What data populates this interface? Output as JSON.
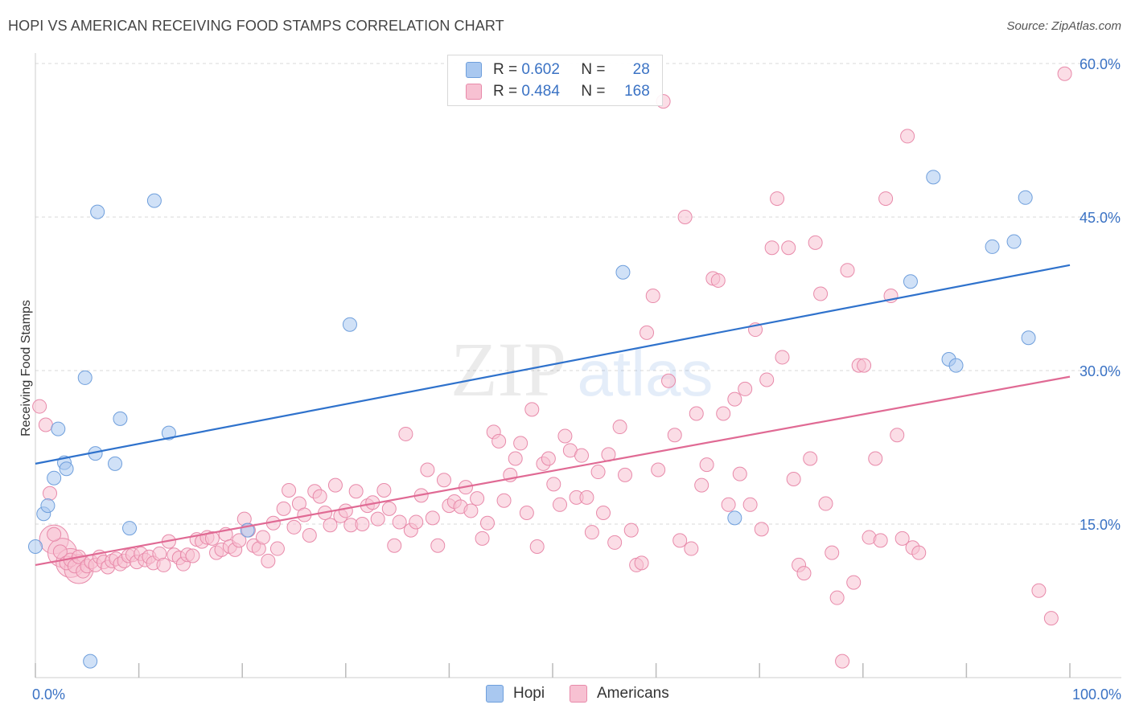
{
  "title": "HOPI VS AMERICAN RECEIVING FOOD STAMPS CORRELATION CHART",
  "source": "Source: ZipAtlas.com",
  "watermark": {
    "zip": "ZIP",
    "atlas": "atlas"
  },
  "legend": {
    "r_label": "R =",
    "n_label": "N =",
    "rows": [
      {
        "r": "0.602",
        "n": "28",
        "color": "#a9c8f0",
        "border": "#6f9fdc"
      },
      {
        "r": "0.484",
        "n": "168",
        "color": "#f7c1d2",
        "border": "#e88aaa"
      }
    ]
  },
  "bottom_legend": [
    {
      "label": "Hopi",
      "color": "#a9c8f0",
      "border": "#6f9fdc"
    },
    {
      "label": "Americans",
      "color": "#f7c1d2",
      "border": "#e88aaa"
    }
  ],
  "chart_data": {
    "type": "scatter",
    "ylabel": "Receiving Food Stamps",
    "xlim": [
      0,
      100
    ],
    "ylim": [
      0,
      60
    ],
    "x_tick_labels": [
      {
        "value": 0,
        "label": "0.0%"
      },
      {
        "value": 100,
        "label": "100.0%"
      }
    ],
    "y_tick_labels": [
      {
        "value": 15,
        "label": "15.0%"
      },
      {
        "value": 30,
        "label": "30.0%"
      },
      {
        "value": 45,
        "label": "45.0%"
      },
      {
        "value": 60,
        "label": "60.0%"
      }
    ],
    "grid": true,
    "series": [
      {
        "name": "Hopi",
        "color": "#a9c8f0",
        "stroke": "#6f9fdc",
        "line_color": "#2f72cc",
        "trend": {
          "x": [
            0,
            100
          ],
          "y": [
            20.9,
            40.3
          ]
        },
        "points": [
          [
            0,
            12.8
          ],
          [
            0.8,
            16.0
          ],
          [
            1.2,
            16.8
          ],
          [
            1.8,
            19.5
          ],
          [
            2.2,
            24.3
          ],
          [
            2.8,
            21.0
          ],
          [
            3.0,
            20.4
          ],
          [
            4.8,
            29.3
          ],
          [
            5.8,
            21.9
          ],
          [
            6.0,
            45.5
          ],
          [
            7.7,
            20.9
          ],
          [
            8.2,
            25.3
          ],
          [
            9.1,
            14.6
          ],
          [
            11.5,
            46.6
          ],
          [
            12.9,
            23.9
          ],
          [
            20.5,
            14.4
          ],
          [
            30.4,
            34.5
          ],
          [
            5.3,
            1.6
          ],
          [
            56.8,
            39.6
          ],
          [
            67.6,
            15.6
          ],
          [
            84.6,
            38.7
          ],
          [
            86.8,
            48.9
          ],
          [
            88.3,
            31.1
          ],
          [
            89.0,
            30.5
          ],
          [
            92.5,
            42.1
          ],
          [
            94.6,
            42.6
          ],
          [
            95.7,
            46.9
          ],
          [
            96.0,
            33.2
          ]
        ]
      },
      {
        "name": "Americans",
        "color": "#f7c1d2",
        "stroke": "#e88aaa",
        "line_color": "#e06a94",
        "trend": {
          "x": [
            0,
            100
          ],
          "y": [
            11.0,
            29.4
          ]
        },
        "points": [
          [
            0.4,
            26.5
          ],
          [
            1.0,
            24.7
          ],
          [
            1.4,
            18.0
          ],
          [
            1.8,
            14.0
          ],
          [
            2.4,
            12.3
          ],
          [
            3.0,
            11.2
          ],
          [
            3.4,
            11.5
          ],
          [
            3.8,
            10.9
          ],
          [
            4.2,
            11.8
          ],
          [
            4.6,
            10.4
          ],
          [
            5.0,
            10.9
          ],
          [
            5.4,
            11.3
          ],
          [
            5.8,
            11.0
          ],
          [
            6.2,
            11.8
          ],
          [
            6.6,
            11.3
          ],
          [
            7.0,
            10.8
          ],
          [
            7.4,
            11.4
          ],
          [
            7.8,
            11.6
          ],
          [
            8.2,
            11.1
          ],
          [
            8.6,
            11.4
          ],
          [
            9.0,
            11.9
          ],
          [
            9.4,
            12.0
          ],
          [
            9.8,
            11.3
          ],
          [
            10.2,
            12.1
          ],
          [
            10.6,
            11.5
          ],
          [
            11.0,
            11.8
          ],
          [
            11.4,
            11.2
          ],
          [
            12.0,
            12.1
          ],
          [
            12.4,
            11.0
          ],
          [
            12.9,
            13.3
          ],
          [
            13.4,
            12.0
          ],
          [
            13.9,
            11.7
          ],
          [
            14.3,
            11.1
          ],
          [
            14.7,
            12.0
          ],
          [
            15.2,
            11.9
          ],
          [
            15.6,
            13.5
          ],
          [
            16.1,
            13.3
          ],
          [
            16.6,
            13.7
          ],
          [
            17.1,
            13.6
          ],
          [
            17.5,
            12.2
          ],
          [
            18.0,
            12.5
          ],
          [
            18.4,
            14.0
          ],
          [
            18.8,
            12.8
          ],
          [
            19.3,
            12.5
          ],
          [
            19.7,
            13.4
          ],
          [
            20.2,
            15.5
          ],
          [
            20.6,
            14.4
          ],
          [
            21.1,
            12.9
          ],
          [
            21.6,
            12.6
          ],
          [
            22.0,
            13.7
          ],
          [
            22.5,
            11.4
          ],
          [
            23.0,
            15.1
          ],
          [
            23.4,
            12.6
          ],
          [
            24.0,
            16.5
          ],
          [
            24.5,
            18.3
          ],
          [
            25.0,
            14.7
          ],
          [
            25.5,
            17.0
          ],
          [
            26.0,
            15.9
          ],
          [
            26.5,
            13.9
          ],
          [
            27.0,
            18.2
          ],
          [
            27.5,
            17.7
          ],
          [
            28.0,
            16.1
          ],
          [
            28.5,
            14.9
          ],
          [
            29.0,
            18.8
          ],
          [
            29.5,
            15.8
          ],
          [
            30.0,
            16.3
          ],
          [
            30.5,
            14.9
          ],
          [
            31.0,
            18.2
          ],
          [
            31.6,
            15.0
          ],
          [
            32.1,
            16.8
          ],
          [
            32.6,
            17.1
          ],
          [
            33.1,
            15.5
          ],
          [
            33.7,
            18.3
          ],
          [
            34.2,
            16.5
          ],
          [
            34.7,
            12.9
          ],
          [
            35.2,
            15.2
          ],
          [
            35.8,
            23.8
          ],
          [
            36.3,
            14.4
          ],
          [
            36.8,
            15.2
          ],
          [
            37.3,
            17.8
          ],
          [
            37.9,
            20.3
          ],
          [
            38.4,
            15.6
          ],
          [
            38.9,
            12.9
          ],
          [
            39.5,
            19.3
          ],
          [
            40.0,
            16.8
          ],
          [
            40.5,
            17.2
          ],
          [
            41.1,
            16.7
          ],
          [
            41.6,
            18.6
          ],
          [
            42.1,
            16.3
          ],
          [
            42.7,
            17.5
          ],
          [
            43.2,
            13.6
          ],
          [
            43.7,
            15.1
          ],
          [
            44.3,
            24.0
          ],
          [
            44.8,
            23.1
          ],
          [
            45.3,
            17.3
          ],
          [
            45.9,
            19.8
          ],
          [
            46.4,
            21.4
          ],
          [
            46.9,
            22.9
          ],
          [
            47.5,
            16.1
          ],
          [
            48.0,
            26.2
          ],
          [
            48.5,
            12.8
          ],
          [
            49.1,
            20.9
          ],
          [
            49.6,
            21.4
          ],
          [
            50.1,
            18.9
          ],
          [
            50.7,
            16.9
          ],
          [
            51.2,
            23.6
          ],
          [
            51.7,
            22.2
          ],
          [
            52.3,
            17.6
          ],
          [
            52.8,
            21.7
          ],
          [
            53.3,
            17.6
          ],
          [
            53.8,
            14.2
          ],
          [
            54.4,
            20.1
          ],
          [
            54.9,
            16.1
          ],
          [
            55.4,
            21.8
          ],
          [
            56.0,
            13.2
          ],
          [
            56.5,
            24.5
          ],
          [
            57.0,
            19.8
          ],
          [
            57.6,
            14.4
          ],
          [
            58.1,
            11.0
          ],
          [
            58.6,
            11.2
          ],
          [
            59.1,
            33.7
          ],
          [
            59.7,
            37.3
          ],
          [
            60.2,
            20.3
          ],
          [
            60.7,
            56.3
          ],
          [
            61.2,
            29.0
          ],
          [
            61.8,
            23.7
          ],
          [
            62.3,
            13.4
          ],
          [
            62.8,
            45.0
          ],
          [
            63.4,
            12.6
          ],
          [
            63.9,
            25.8
          ],
          [
            64.4,
            18.8
          ],
          [
            64.9,
            20.8
          ],
          [
            65.5,
            39.0
          ],
          [
            66.0,
            38.8
          ],
          [
            66.5,
            25.8
          ],
          [
            67.0,
            16.9
          ],
          [
            67.6,
            27.2
          ],
          [
            68.1,
            19.9
          ],
          [
            68.6,
            28.2
          ],
          [
            69.1,
            16.9
          ],
          [
            69.6,
            34.0
          ],
          [
            70.2,
            14.5
          ],
          [
            70.7,
            29.1
          ],
          [
            71.2,
            42.0
          ],
          [
            71.7,
            46.8
          ],
          [
            72.2,
            31.3
          ],
          [
            72.8,
            42.0
          ],
          [
            73.3,
            19.4
          ],
          [
            73.8,
            11.0
          ],
          [
            74.3,
            10.2
          ],
          [
            74.9,
            21.4
          ],
          [
            75.4,
            42.5
          ],
          [
            75.9,
            37.5
          ],
          [
            76.4,
            17.0
          ],
          [
            77.0,
            12.2
          ],
          [
            77.5,
            7.8
          ],
          [
            78.0,
            1.6
          ],
          [
            78.5,
            39.8
          ],
          [
            79.1,
            9.3
          ],
          [
            79.6,
            30.5
          ],
          [
            80.1,
            30.5
          ],
          [
            80.6,
            13.7
          ],
          [
            81.2,
            21.4
          ],
          [
            81.7,
            13.4
          ],
          [
            82.2,
            46.8
          ],
          [
            82.7,
            37.3
          ],
          [
            83.3,
            23.7
          ],
          [
            83.8,
            13.6
          ],
          [
            84.3,
            52.9
          ],
          [
            84.8,
            12.7
          ],
          [
            85.4,
            12.2
          ],
          [
            97.0,
            8.5
          ],
          [
            98.2,
            5.8
          ],
          [
            99.5,
            59.0
          ]
        ],
        "big_points": [
          [
            1.8,
            13.5
          ],
          [
            2.6,
            12.2
          ],
          [
            3.4,
            11.2
          ],
          [
            4.2,
            10.6
          ]
        ]
      }
    ]
  }
}
